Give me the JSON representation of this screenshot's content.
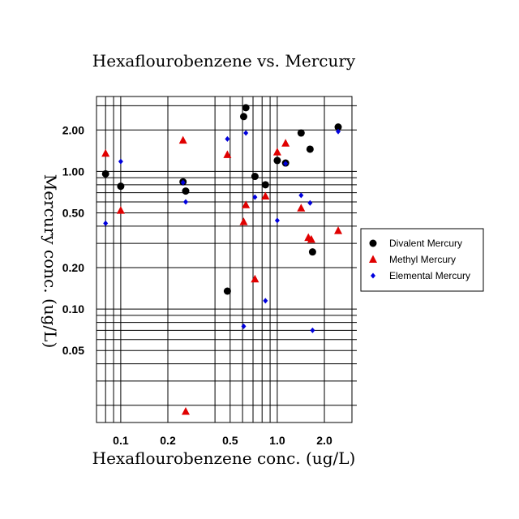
{
  "chart_data": {
    "type": "scatter",
    "title": "Hexaflourobenzene vs. Mercury",
    "xlabel": "Hexaflourobenzene conc. (ug/L)",
    "ylabel": "Mercury conc. (ug/L)",
    "xscale": "log",
    "yscale": "log",
    "xlim": [
      0.07,
      3.0
    ],
    "ylim": [
      0.015,
      3.5
    ],
    "x_ticks": [
      0.1,
      0.2,
      0.5,
      1.0,
      2.0
    ],
    "x_tick_labels": [
      "0.1",
      "0.2",
      "0.5",
      "1.0",
      "2.0"
    ],
    "y_ticks": [
      0.05,
      0.1,
      0.2,
      0.5,
      1.0,
      2.0
    ],
    "y_tick_labels": [
      "0.05",
      "0.10",
      "0.20",
      "0.50",
      "1.00",
      "2.00"
    ],
    "x_grid": [
      0.08,
      0.09,
      0.1,
      0.2,
      0.4,
      0.5,
      0.6,
      0.7,
      0.8,
      0.9,
      1.0,
      2.0
    ],
    "y_grid": [
      0.02,
      0.03,
      0.04,
      0.05,
      0.06,
      0.07,
      0.08,
      0.09,
      0.1,
      0.2,
      0.3,
      0.4,
      0.5,
      0.6,
      0.7,
      0.8,
      0.9,
      1.0,
      2.0,
      3.0
    ],
    "grid": true,
    "legend_position": "right",
    "series": [
      {
        "name": "Divalent Mercury",
        "marker": "circle",
        "color": "#000000",
        "points": [
          [
            0.08,
            0.96
          ],
          [
            0.1,
            0.78
          ],
          [
            0.25,
            0.84
          ],
          [
            0.26,
            0.72
          ],
          [
            0.48,
            0.135
          ],
          [
            0.61,
            2.5
          ],
          [
            0.63,
            2.9
          ],
          [
            0.72,
            0.92
          ],
          [
            0.84,
            0.8
          ],
          [
            1.0,
            1.2
          ],
          [
            1.13,
            1.15
          ],
          [
            1.42,
            1.9
          ],
          [
            1.62,
            1.45
          ],
          [
            1.68,
            0.26
          ],
          [
            2.45,
            2.1
          ]
        ]
      },
      {
        "name": "Methyl Mercury",
        "marker": "triangle",
        "color": "#e00000",
        "points": [
          [
            0.08,
            1.35
          ],
          [
            0.1,
            0.52
          ],
          [
            0.25,
            1.68
          ],
          [
            0.26,
            0.018
          ],
          [
            0.48,
            1.32
          ],
          [
            0.61,
            0.43
          ],
          [
            0.63,
            0.57
          ],
          [
            0.72,
            0.165
          ],
          [
            0.84,
            0.66
          ],
          [
            1.0,
            1.38
          ],
          [
            1.13,
            1.6
          ],
          [
            1.42,
            0.54
          ],
          [
            1.58,
            0.33
          ],
          [
            1.65,
            0.32
          ],
          [
            2.45,
            0.37
          ]
        ]
      },
      {
        "name": "Elemental Mercury",
        "marker": "diamond",
        "color": "#0000dd",
        "points": [
          [
            0.08,
            0.42
          ],
          [
            0.1,
            1.18
          ],
          [
            0.25,
            0.83
          ],
          [
            0.26,
            0.6
          ],
          [
            0.48,
            1.72
          ],
          [
            0.61,
            0.075
          ],
          [
            0.63,
            1.9
          ],
          [
            0.72,
            0.65
          ],
          [
            0.84,
            0.115
          ],
          [
            1.0,
            0.44
          ],
          [
            1.13,
            1.14
          ],
          [
            1.42,
            0.67
          ],
          [
            1.62,
            0.59
          ],
          [
            1.68,
            0.07
          ],
          [
            2.45,
            1.95
          ]
        ]
      }
    ]
  }
}
